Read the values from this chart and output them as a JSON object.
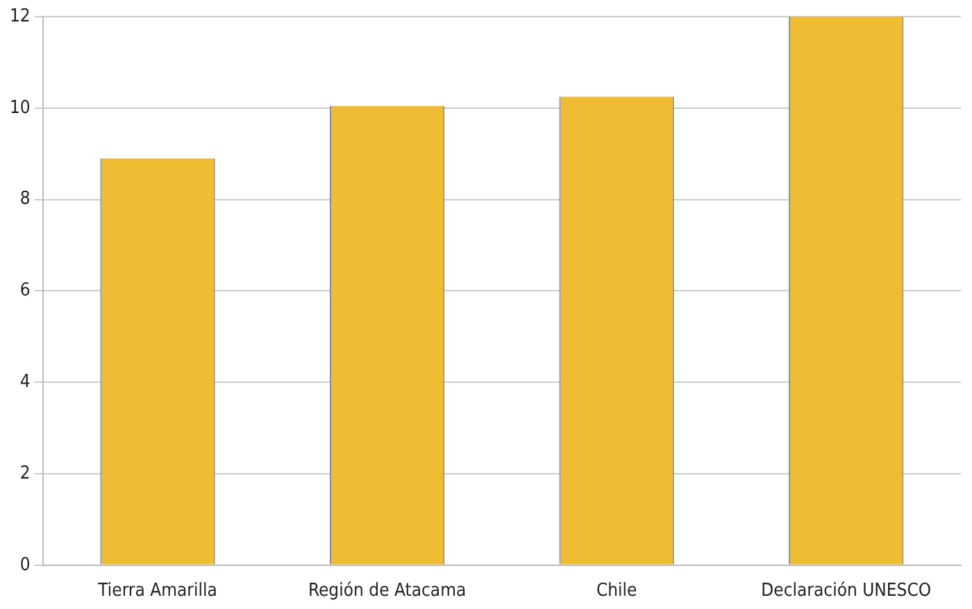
{
  "chart_data": {
    "type": "bar",
    "categories": [
      "Tierra Amarilla",
      "Región de Atacama",
      "Chile",
      "Declaración UNESCO"
    ],
    "values": [
      8.9,
      10.05,
      10.25,
      12
    ],
    "color": "#f0bc34",
    "ylim": [
      0,
      12
    ],
    "yticks": [
      0,
      2,
      4,
      6,
      8,
      10,
      12
    ],
    "grid": "y",
    "legend": false
  }
}
